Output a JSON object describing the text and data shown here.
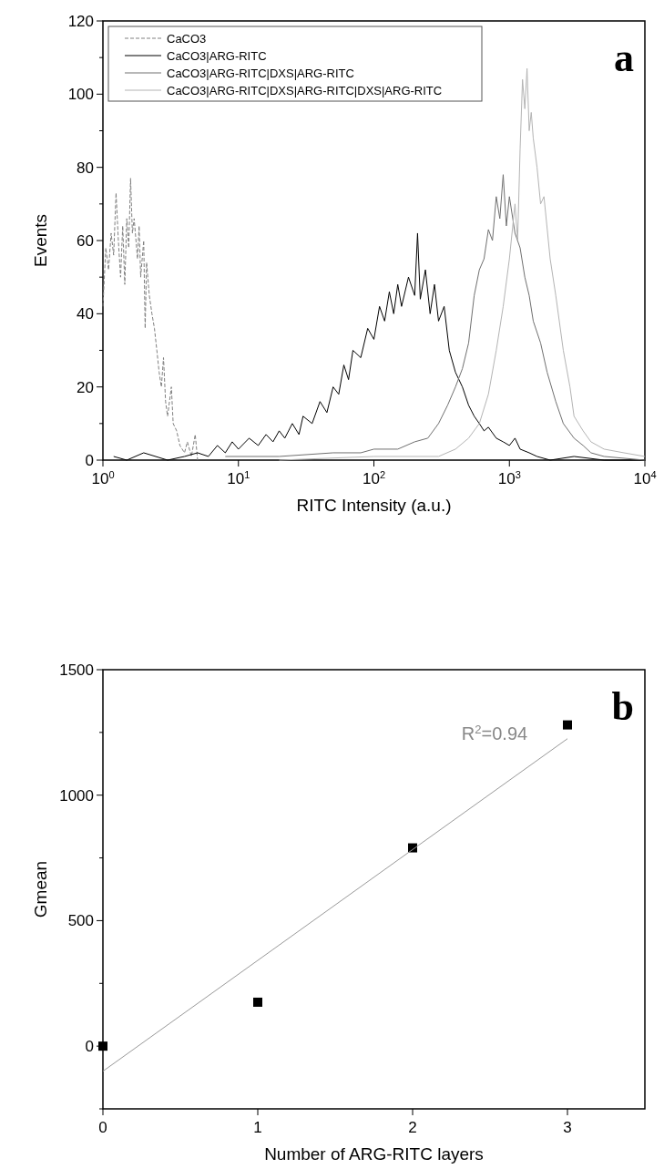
{
  "chart_data": [
    {
      "type": "line",
      "xlabel": "RITC Intensity (a.u.)",
      "ylabel": "Events",
      "log": "x",
      "legend": "top left",
      "annotations": [
        "a"
      ],
      "xlim": [
        1,
        10000
      ],
      "xticks": [
        {
          "value": 1,
          "label": "10$^{0}$"
        },
        {
          "value": 10,
          "label": "10$^{1}$"
        },
        {
          "value": 100,
          "label": "10$^{2}$"
        },
        {
          "value": 1000,
          "label": "10$^{3}$"
        },
        {
          "value": 10000,
          "label": "10$^{4}$"
        }
      ],
      "ylim": [
        0,
        120
      ],
      "yticks": [
        0,
        {
          "value": 10,
          "label": null
        },
        20,
        {
          "value": 30,
          "label": null
        },
        40,
        {
          "value": 50,
          "label": null
        },
        60,
        {
          "value": 70,
          "label": null
        },
        80,
        {
          "value": 90,
          "label": null
        },
        100,
        {
          "value": 110,
          "label": null
        },
        120
      ],
      "series": [
        {
          "name": "CaCO3",
          "color": "#808080",
          "line_style": "dashed",
          "x": [
            1,
            1.05,
            1.1,
            1.15,
            1.2,
            1.25,
            1.3,
            1.35,
            1.4,
            1.45,
            1.5,
            1.55,
            1.6,
            1.65,
            1.7,
            1.8,
            1.85,
            1.9,
            2,
            2.05,
            2.1,
            2.2,
            2.3,
            2.4,
            2.5,
            2.6,
            2.7,
            2.8,
            2.9,
            3,
            3.2,
            3.3,
            3.5,
            3.7,
            4,
            4.2,
            4.5,
            4.8,
            5
          ],
          "values": [
            42,
            58,
            52,
            62,
            56,
            73,
            60,
            50,
            64,
            48,
            66,
            58,
            77,
            62,
            66,
            55,
            64,
            50,
            60,
            36,
            54,
            45,
            40,
            36,
            30,
            24,
            20,
            28,
            16,
            12,
            20,
            10,
            8,
            4,
            2,
            5,
            1,
            7,
            0
          ]
        },
        {
          "name": "CaCO3|ARG-RITC",
          "color": "#000000",
          "x": [
            1.2,
            1.5,
            2,
            3,
            4,
            5,
            6,
            7,
            8,
            9,
            10,
            12,
            14,
            16,
            18,
            20,
            22,
            25,
            28,
            30,
            35,
            40,
            45,
            50,
            55,
            60,
            65,
            70,
            80,
            90,
            100,
            110,
            120,
            130,
            140,
            150,
            160,
            180,
            200,
            210,
            220,
            240,
            260,
            280,
            300,
            330,
            360,
            400,
            450,
            500,
            550,
            600,
            650,
            700,
            800,
            900,
            1000,
            1100,
            1200,
            1400,
            1600,
            2000,
            3000,
            5000,
            10000
          ],
          "values": [
            1,
            0,
            2,
            0,
            1,
            2,
            1,
            4,
            2,
            5,
            3,
            6,
            4,
            7,
            5,
            8,
            6,
            10,
            7,
            12,
            10,
            16,
            13,
            20,
            18,
            26,
            22,
            30,
            28,
            36,
            33,
            42,
            38,
            46,
            40,
            48,
            42,
            50,
            45,
            62,
            44,
            52,
            40,
            48,
            38,
            42,
            30,
            24,
            20,
            15,
            12,
            10,
            8,
            9,
            6,
            5,
            4,
            6,
            3,
            2,
            1,
            0,
            1,
            0,
            0
          ]
        },
        {
          "name": "CaCO3|ARG-RITC|DXS|ARG-RITC",
          "color": "#707070",
          "x": [
            8,
            20,
            50,
            80,
            100,
            150,
            200,
            250,
            300,
            350,
            400,
            450,
            500,
            550,
            600,
            650,
            700,
            750,
            800,
            850,
            900,
            950,
            1000,
            1100,
            1200,
            1300,
            1400,
            1500,
            1700,
            1900,
            2200,
            2500,
            3000,
            3500,
            4000,
            5000,
            10000
          ],
          "values": [
            1,
            1,
            2,
            2,
            3,
            3,
            5,
            6,
            10,
            15,
            20,
            25,
            32,
            45,
            52,
            55,
            63,
            60,
            72,
            66,
            78,
            64,
            72,
            62,
            58,
            50,
            45,
            38,
            32,
            24,
            16,
            10,
            6,
            4,
            2,
            1,
            0
          ]
        },
        {
          "name": "CaCO3|ARG-RITC|DXS|ARG-RITC|DXS|ARG-RITC",
          "color": "#b4b4b4",
          "x": [
            20,
            100,
            300,
            400,
            500,
            600,
            700,
            800,
            900,
            1000,
            1100,
            1150,
            1200,
            1250,
            1300,
            1350,
            1400,
            1450,
            1500,
            1600,
            1700,
            1800,
            2000,
            2200,
            2500,
            2800,
            3000,
            3500,
            4000,
            5000,
            7000,
            10000
          ],
          "values": [
            0,
            1,
            1,
            3,
            6,
            10,
            18,
            30,
            42,
            55,
            70,
            60,
            85,
            104,
            96,
            107,
            90,
            95,
            88,
            80,
            70,
            72,
            55,
            45,
            30,
            20,
            12,
            8,
            5,
            3,
            2,
            1
          ]
        }
      ]
    },
    {
      "type": "scatter",
      "xlabel": "Number of ARG-RITC layers",
      "ylabel": "Gmean",
      "legend": false,
      "annotations": [
        "b",
        "R$^{2}$=0.94"
      ],
      "xlim": [
        0,
        3.5
      ],
      "xticks": [
        0,
        1,
        2,
        3
      ],
      "ylim": [
        -250,
        1500
      ],
      "yticks": [
        {
          "value": -250,
          "label": null
        },
        0,
        {
          "value": 250,
          "label": null
        },
        500,
        {
          "value": 750,
          "label": null
        },
        1000,
        {
          "value": 1250,
          "label": null
        },
        1500
      ],
      "series": [
        {
          "color": "#000000",
          "marker": "square",
          "x": [
            0,
            1,
            2,
            3
          ],
          "values": [
            0,
            175,
            790,
            1280
          ]
        },
        {
          "type": "line",
          "color": "#999999",
          "x": [
            0,
            3
          ],
          "values": [
            -100,
            1225
          ]
        }
      ]
    }
  ]
}
